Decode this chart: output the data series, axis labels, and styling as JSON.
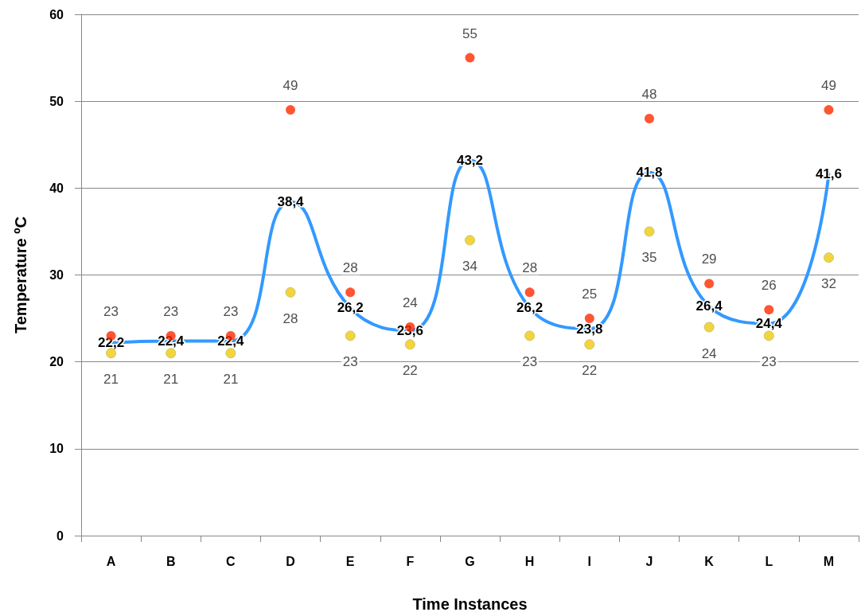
{
  "chart_data": {
    "type": "scatter",
    "xlabel": "Time Instances",
    "ylabel": "Temperature ºC",
    "categories": [
      "A",
      "B",
      "C",
      "D",
      "E",
      "F",
      "G",
      "H",
      "I",
      "J",
      "K",
      "L",
      "M"
    ],
    "ylim": [
      0,
      60
    ],
    "yticks": [
      0,
      10,
      20,
      30,
      40,
      50,
      60
    ],
    "grid": "y",
    "legend": false,
    "marker": "circle",
    "series": [
      {
        "type": "line",
        "color": "#3399ff",
        "line_style": "solid",
        "marker": "none",
        "values": [
          22.2,
          22.4,
          22.4,
          38.4,
          26.2,
          23.6,
          43.2,
          26.2,
          23.8,
          41.8,
          26.4,
          24.4,
          41.6
        ],
        "value_labels": [
          "22,2",
          "22,4",
          "22,4",
          "38,4",
          "26,2",
          "23,6",
          "43,2",
          "26,2",
          "23,8",
          "41,8",
          "26,4",
          "24,4",
          "41,6"
        ]
      },
      {
        "color": "#ff2a00",
        "values": [
          23,
          23,
          23,
          49,
          28,
          24,
          55,
          28,
          25,
          48,
          29,
          26,
          49
        ],
        "value_labels": [
          "23",
          "23",
          "23",
          "49",
          "28",
          "24",
          "55",
          "28",
          "25",
          "48",
          "29",
          "26",
          "49"
        ]
      },
      {
        "color": "#f2c80f",
        "values": [
          21,
          21,
          21,
          28,
          23,
          22,
          34,
          23,
          22,
          35,
          24,
          23,
          32
        ],
        "value_labels": [
          "21",
          "21",
          "21",
          "28",
          "23",
          "22",
          "34",
          "23",
          "22",
          "35",
          "24",
          "23",
          "32"
        ]
      }
    ]
  }
}
